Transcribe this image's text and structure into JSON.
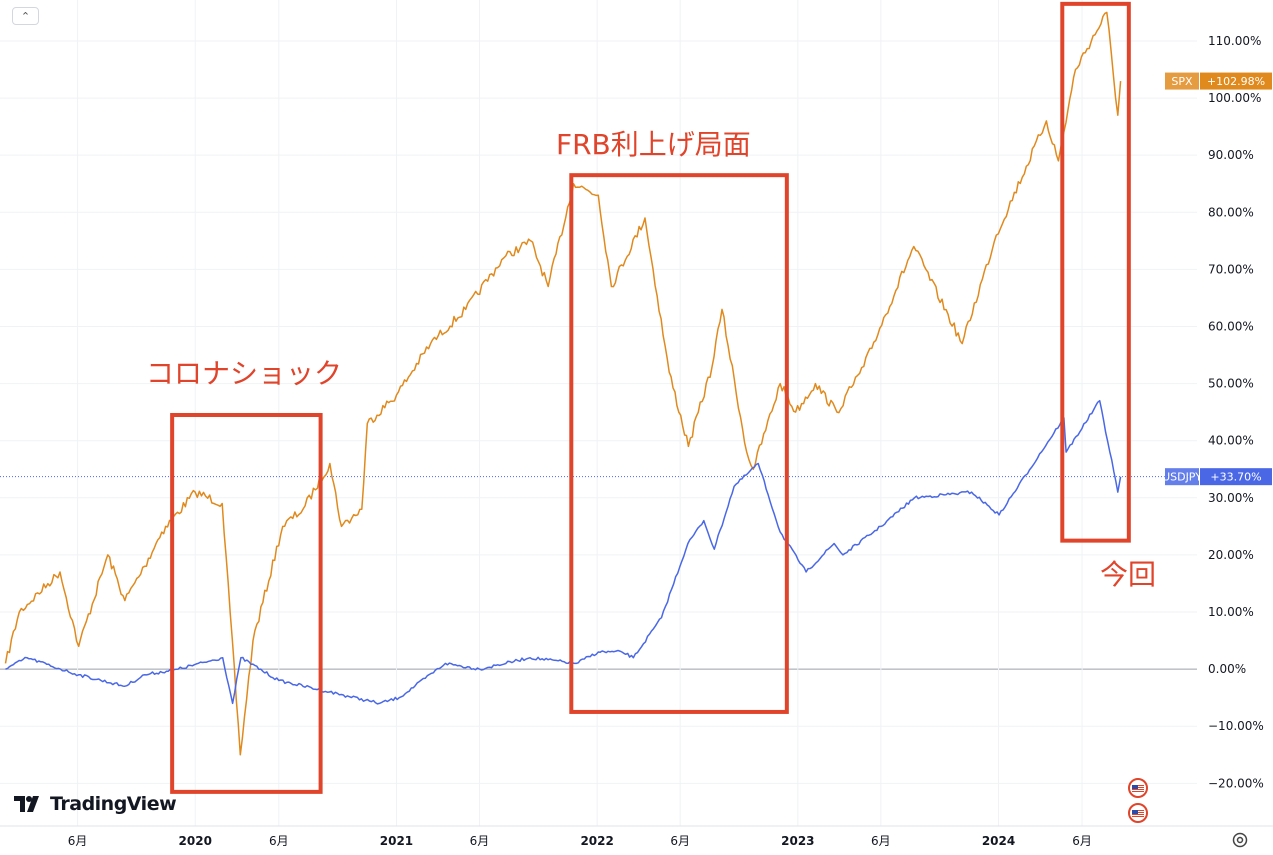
{
  "chart_data": {
    "type": "line",
    "title": "",
    "xlabel": "",
    "ylabel": "",
    "x_tick_labels": [
      {
        "label": "6月",
        "date": "2019-06"
      },
      {
        "label": "2020",
        "date": "2020-01"
      },
      {
        "label": "6月",
        "date": "2020-06"
      },
      {
        "label": "2021",
        "date": "2021-01"
      },
      {
        "label": "6月",
        "date": "2021-06"
      },
      {
        "label": "2022",
        "date": "2022-01"
      },
      {
        "label": "6月",
        "date": "2022-06"
      },
      {
        "label": "2023",
        "date": "2023-01"
      },
      {
        "label": "6月",
        "date": "2023-06"
      },
      {
        "label": "2024",
        "date": "2024-01"
      },
      {
        "label": "6月",
        "date": "2024-06"
      }
    ],
    "y_tick_labels": [
      "110.00%",
      "100.00%",
      "90.00%",
      "80.00%",
      "70.00%",
      "60.00%",
      "50.00%",
      "40.00%",
      "30.00%",
      "20.00%",
      "10.00%",
      "0.00%",
      "−10.00%",
      "−20.00%"
    ],
    "y_ticks": [
      110,
      100,
      90,
      80,
      70,
      60,
      50,
      40,
      30,
      20,
      10,
      0,
      -10,
      -20
    ],
    "ylim": [
      -28,
      117
    ],
    "xlim": [
      "2019-01-20",
      "2024-12-27"
    ],
    "grid": true,
    "series": [
      {
        "name": "SPX",
        "color": "#e08a1e",
        "last_value_label": "+102.98%",
        "x": [
          "2019-01-21",
          "2019-02-15",
          "2019-04-30",
          "2019-06-03",
          "2019-07-26",
          "2019-08-26",
          "2019-10-01",
          "2019-11-01",
          "2020-01-01",
          "2020-02-19",
          "2020-03-23",
          "2020-04-15",
          "2020-06-08",
          "2020-07-15",
          "2020-09-02",
          "2020-09-23",
          "2020-10-30",
          "2020-11-09",
          "2021-01-01",
          "2021-03-04",
          "2021-05-07",
          "2021-07-15",
          "2021-09-02",
          "2021-10-04",
          "2021-11-19",
          "2022-01-03",
          "2022-01-27",
          "2022-03-29",
          "2022-05-12",
          "2022-06-16",
          "2022-07-29",
          "2022-08-16",
          "2022-09-30",
          "2022-10-12",
          "2022-11-30",
          "2022-12-28",
          "2023-02-02",
          "2023-03-13",
          "2023-05-01",
          "2023-07-31",
          "2023-10-27",
          "2023-12-28",
          "2024-03-28",
          "2024-04-19",
          "2024-05-20",
          "2024-07-16",
          "2024-08-05",
          "2024-08-10"
        ],
        "values": [
          1,
          10,
          17,
          4,
          20,
          12,
          18,
          24,
          31,
          29,
          -15,
          5,
          25,
          28,
          36,
          25,
          28,
          43,
          48,
          57,
          63,
          72,
          75,
          67,
          85,
          83,
          67,
          79,
          52,
          39,
          53,
          63,
          38,
          35,
          50,
          45,
          50,
          45,
          53,
          74,
          57,
          76,
          96,
          89,
          105,
          115,
          97,
          102.98
        ]
      },
      {
        "name": "USDJPY",
        "color": "#4a68e6",
        "last_value_label": "+33.70%",
        "x": [
          "2019-01-21",
          "2019-03-01",
          "2019-05-01",
          "2019-06-03",
          "2019-08-26",
          "2019-10-01",
          "2019-12-01",
          "2020-02-20",
          "2020-03-09",
          "2020-03-24",
          "2020-06-01",
          "2020-09-01",
          "2020-12-01",
          "2021-01-06",
          "2021-03-31",
          "2021-06-01",
          "2021-09-01",
          "2021-11-24",
          "2022-01-03",
          "2022-02-15",
          "2022-03-08",
          "2022-04-28",
          "2022-06-15",
          "2022-07-14",
          "2022-08-02",
          "2022-09-07",
          "2022-10-21",
          "2022-11-30",
          "2023-01-16",
          "2023-03-08",
          "2023-03-24",
          "2023-06-01",
          "2023-08-01",
          "2023-11-13",
          "2024-01-02",
          "2024-04-29",
          "2024-05-03",
          "2024-07-03",
          "2024-08-05",
          "2024-08-10"
        ],
        "values": [
          0,
          2,
          0,
          -1,
          -3,
          -1,
          0,
          2,
          -6,
          2,
          -2,
          -4,
          -6,
          -5,
          1,
          0,
          2,
          1,
          3,
          3,
          2,
          9,
          22,
          26,
          21,
          32,
          36,
          24,
          17,
          22,
          20,
          25,
          30,
          31,
          27,
          44,
          38,
          47,
          31,
          33.7
        ]
      }
    ]
  },
  "badges": {
    "spx": {
      "name": "SPX",
      "value": "+102.98%",
      "color": "#e08a1e"
    },
    "usdjpy": {
      "name": "USDJPY",
      "value": "+33.70%",
      "color": "#4a68e6"
    }
  },
  "annotations": {
    "covid": "コロナショック",
    "fed": "FRB利上げ局面",
    "now": "今回",
    "color": "#e0442a"
  },
  "branding": {
    "logo_text": "TradingView"
  }
}
